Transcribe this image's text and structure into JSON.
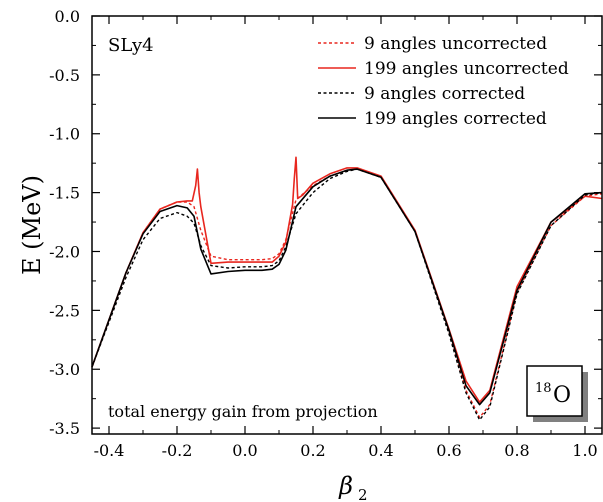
{
  "chart_data": {
    "type": "line",
    "xlabel_symbol": "β",
    "xlabel_sub": "2",
    "ylabel": "E (MeV)",
    "xlim": [
      -0.45,
      1.05
    ],
    "ylim": [
      -3.55,
      0.0
    ],
    "xticks": [
      -0.4,
      -0.2,
      0.0,
      0.2,
      0.4,
      0.6,
      0.8,
      1.0
    ],
    "xtick_labels": [
      "-0.4",
      "-0.2",
      "0.0",
      "0.2",
      "0.4",
      "0.6",
      "0.8",
      "1.0"
    ],
    "yticks": [
      0.0,
      -0.5,
      -1.0,
      -1.5,
      -2.0,
      -2.5,
      -3.0,
      -3.5
    ],
    "ytick_labels": [
      "0.0",
      "-0.5",
      "-1.0",
      "-1.5",
      "-2.0",
      "-2.5",
      "-3.0",
      "-3.5"
    ],
    "grid": false,
    "legend_position": "top-right",
    "annotations": {
      "interaction": "SLy4",
      "nucleus_mass": "18",
      "nucleus_symbol": "O",
      "bottom_note": "total energy gain from projection"
    },
    "series": [
      {
        "name": "9 angles uncorrected",
        "color": "#e8271f",
        "dash": "dashed",
        "x": [
          -0.45,
          -0.4,
          -0.35,
          -0.3,
          -0.25,
          -0.2,
          -0.17,
          -0.15,
          -0.13,
          -0.1,
          -0.05,
          0.0,
          0.05,
          0.08,
          0.1,
          0.12,
          0.15,
          0.2,
          0.25,
          0.3,
          0.33,
          0.4,
          0.5,
          0.6,
          0.65,
          0.69,
          0.72,
          0.8,
          0.9,
          1.0,
          1.05
        ],
        "y": [
          -2.98,
          -2.58,
          -2.18,
          -1.84,
          -1.64,
          -1.58,
          -1.58,
          -1.62,
          -1.82,
          -2.04,
          -2.07,
          -2.07,
          -2.07,
          -2.06,
          -2.02,
          -1.9,
          -1.56,
          -1.44,
          -1.36,
          -1.31,
          -1.3,
          -1.37,
          -1.83,
          -2.68,
          -3.18,
          -3.41,
          -3.3,
          -2.35,
          -1.78,
          -1.53,
          -1.51
        ]
      },
      {
        "name": "199 angles uncorrected",
        "color": "#e8271f",
        "dash": "solid",
        "x": [
          -0.45,
          -0.4,
          -0.35,
          -0.3,
          -0.25,
          -0.2,
          -0.17,
          -0.155,
          -0.145,
          -0.14,
          -0.135,
          -0.13,
          -0.11,
          -0.1,
          -0.05,
          0.0,
          0.05,
          0.08,
          0.1,
          0.12,
          0.14,
          0.145,
          0.15,
          0.155,
          0.17,
          0.2,
          0.25,
          0.3,
          0.33,
          0.4,
          0.5,
          0.6,
          0.65,
          0.69,
          0.72,
          0.8,
          0.9,
          1.0,
          1.05
        ],
        "y": [
          -2.98,
          -2.58,
          -2.18,
          -1.84,
          -1.64,
          -1.58,
          -1.57,
          -1.57,
          -1.44,
          -1.3,
          -1.5,
          -1.62,
          -1.94,
          -2.1,
          -2.09,
          -2.09,
          -2.09,
          -2.09,
          -2.04,
          -1.92,
          -1.6,
          -1.38,
          -1.2,
          -1.55,
          -1.52,
          -1.42,
          -1.34,
          -1.29,
          -1.29,
          -1.36,
          -1.82,
          -2.66,
          -3.1,
          -3.28,
          -3.18,
          -2.3,
          -1.75,
          -1.53,
          -1.55
        ]
      },
      {
        "name": "9 angles corrected",
        "color": "#000000",
        "dash": "dashed",
        "x": [
          -0.45,
          -0.4,
          -0.35,
          -0.3,
          -0.25,
          -0.2,
          -0.17,
          -0.15,
          -0.13,
          -0.1,
          -0.05,
          0.0,
          0.05,
          0.08,
          0.1,
          0.12,
          0.15,
          0.2,
          0.25,
          0.3,
          0.33,
          0.4,
          0.5,
          0.6,
          0.65,
          0.69,
          0.72,
          0.8,
          0.9,
          1.0,
          1.05
        ],
        "y": [
          -2.98,
          -2.6,
          -2.22,
          -1.9,
          -1.72,
          -1.67,
          -1.7,
          -1.76,
          -1.95,
          -2.12,
          -2.14,
          -2.13,
          -2.13,
          -2.12,
          -2.08,
          -1.96,
          -1.68,
          -1.5,
          -1.38,
          -1.32,
          -1.3,
          -1.37,
          -1.83,
          -2.7,
          -3.2,
          -3.43,
          -3.32,
          -2.36,
          -1.78,
          -1.52,
          -1.5
        ]
      },
      {
        "name": "199 angles corrected",
        "color": "#000000",
        "dash": "solid",
        "x": [
          -0.45,
          -0.4,
          -0.35,
          -0.3,
          -0.25,
          -0.2,
          -0.17,
          -0.15,
          -0.13,
          -0.1,
          -0.05,
          0.0,
          0.05,
          0.08,
          0.1,
          0.12,
          0.15,
          0.2,
          0.25,
          0.3,
          0.33,
          0.4,
          0.5,
          0.6,
          0.65,
          0.69,
          0.72,
          0.8,
          0.9,
          1.0,
          1.05
        ],
        "y": [
          -2.98,
          -2.58,
          -2.18,
          -1.85,
          -1.66,
          -1.61,
          -1.63,
          -1.7,
          -1.98,
          -2.19,
          -2.17,
          -2.16,
          -2.16,
          -2.15,
          -2.11,
          -1.99,
          -1.62,
          -1.45,
          -1.36,
          -1.31,
          -1.3,
          -1.37,
          -1.83,
          -2.67,
          -3.14,
          -3.3,
          -3.2,
          -2.33,
          -1.75,
          -1.51,
          -1.5
        ]
      }
    ]
  }
}
